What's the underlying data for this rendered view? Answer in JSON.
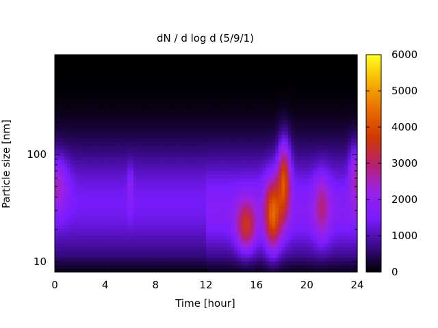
{
  "chart_data": {
    "type": "heatmap",
    "title": "dN / d log d (5/9/1)",
    "xlabel": "Time [hour]",
    "ylabel": "Particle size [nm]",
    "xlim": [
      0,
      24
    ],
    "x_ticks": [
      0,
      4,
      8,
      12,
      16,
      20,
      24
    ],
    "y_scale": "log",
    "ylim": [
      8,
      850
    ],
    "y_ticks": [
      10,
      100
    ],
    "grid": false,
    "colorbar": {
      "min": 0,
      "max": 6000,
      "ticks": [
        0,
        1000,
        2000,
        3000,
        4000,
        5000,
        6000
      ],
      "colormap": [
        "#000000",
        "#3c0a8c",
        "#7a1cff",
        "#9a22e6",
        "#b8216a",
        "#d03a00",
        "#e86e00",
        "#f7b200",
        "#ffff1e"
      ]
    },
    "features": [
      {
        "t_center": 0.2,
        "d_center_nm": 50,
        "peak": 2600,
        "t_width": 0.6,
        "d_width_log": 0.18
      },
      {
        "t_center": 6.0,
        "d_center_nm": 45,
        "peak": 2100,
        "t_width": 0.15,
        "d_width_log": 0.15
      },
      {
        "t_center": 15.2,
        "d_center_nm": 22,
        "peak": 3800,
        "t_width": 0.55,
        "d_width_log": 0.16
      },
      {
        "t_center": 17.3,
        "d_center_nm": 28,
        "peak": 4700,
        "t_width": 0.45,
        "d_width_log": 0.22
      },
      {
        "t_center": 18.2,
        "d_center_nm": 55,
        "peak": 4300,
        "t_width": 0.35,
        "d_width_log": 0.25
      },
      {
        "t_center": 21.2,
        "d_center_nm": 32,
        "peak": 3000,
        "t_width": 0.45,
        "d_width_log": 0.2
      },
      {
        "t_center": 23.8,
        "d_center_nm": 60,
        "peak": 2700,
        "t_width": 0.3,
        "d_width_log": 0.2
      }
    ]
  }
}
